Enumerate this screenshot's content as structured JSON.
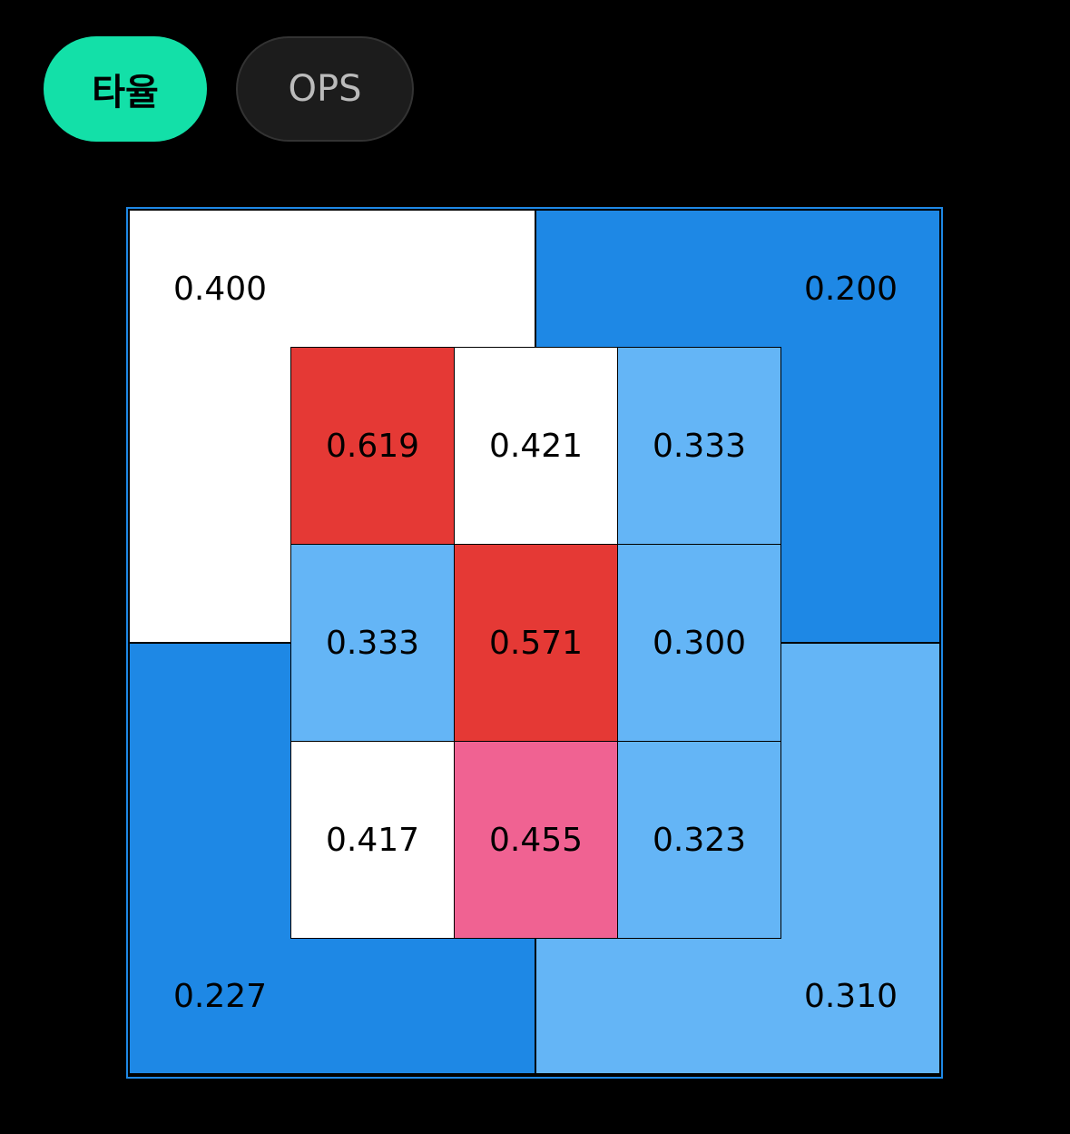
{
  "tabs": [
    {
      "label": "타율",
      "active": true
    },
    {
      "label": "OPS",
      "active": false
    }
  ],
  "zone": {
    "outer": [
      {
        "value": "0.400",
        "color": "#ffffff"
      },
      {
        "value": "0.200",
        "color": "#1e88e5"
      },
      {
        "value": "0.227",
        "color": "#1e88e5"
      },
      {
        "value": "0.310",
        "color": "#64b5f6"
      }
    ],
    "inner": [
      [
        {
          "value": "0.619",
          "color": "#e53935"
        },
        {
          "value": "0.421",
          "color": "#ffffff"
        },
        {
          "value": "0.333",
          "color": "#64b5f6"
        }
      ],
      [
        {
          "value": "0.333",
          "color": "#64b5f6"
        },
        {
          "value": "0.571",
          "color": "#e53935"
        },
        {
          "value": "0.300",
          "color": "#64b5f6"
        }
      ],
      [
        {
          "value": "0.417",
          "color": "#ffffff"
        },
        {
          "value": "0.455",
          "color": "#f06292"
        },
        {
          "value": "0.323",
          "color": "#64b5f6"
        }
      ]
    ]
  }
}
